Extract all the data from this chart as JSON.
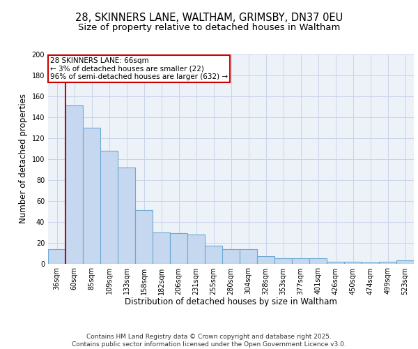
{
  "title": "28, SKINNERS LANE, WALTHAM, GRIMSBY, DN37 0EU",
  "subtitle": "Size of property relative to detached houses in Waltham",
  "xlabel": "Distribution of detached houses by size in Waltham",
  "ylabel": "Number of detached properties",
  "categories": [
    "36sqm",
    "60sqm",
    "85sqm",
    "109sqm",
    "133sqm",
    "158sqm",
    "182sqm",
    "206sqm",
    "231sqm",
    "255sqm",
    "280sqm",
    "304sqm",
    "328sqm",
    "353sqm",
    "377sqm",
    "401sqm",
    "426sqm",
    "450sqm",
    "474sqm",
    "499sqm",
    "523sqm"
  ],
  "values": [
    14,
    151,
    130,
    108,
    92,
    51,
    30,
    29,
    28,
    17,
    14,
    14,
    7,
    5,
    5,
    5,
    2,
    2,
    1,
    2,
    3
  ],
  "bar_color": "#c5d8f0",
  "bar_edge_color": "#6aaad4",
  "grid_color": "#c8d4e8",
  "background_color": "#edf2f9",
  "annotation_text": "28 SKINNERS LANE: 66sqm\n← 3% of detached houses are smaller (22)\n96% of semi-detached houses are larger (632) →",
  "annotation_box_color": "#ffffff",
  "annotation_box_edge_color": "#cc0000",
  "vline_color": "#cc0000",
  "ylim": [
    0,
    200
  ],
  "yticks": [
    0,
    20,
    40,
    60,
    80,
    100,
    120,
    140,
    160,
    180,
    200
  ],
  "footer": "Contains HM Land Registry data © Crown copyright and database right 2025.\nContains public sector information licensed under the Open Government Licence v3.0.",
  "title_fontsize": 10.5,
  "subtitle_fontsize": 9.5,
  "tick_fontsize": 7,
  "ylabel_fontsize": 8.5,
  "xlabel_fontsize": 8.5,
  "annotation_fontsize": 7.5,
  "footer_fontsize": 6.5
}
